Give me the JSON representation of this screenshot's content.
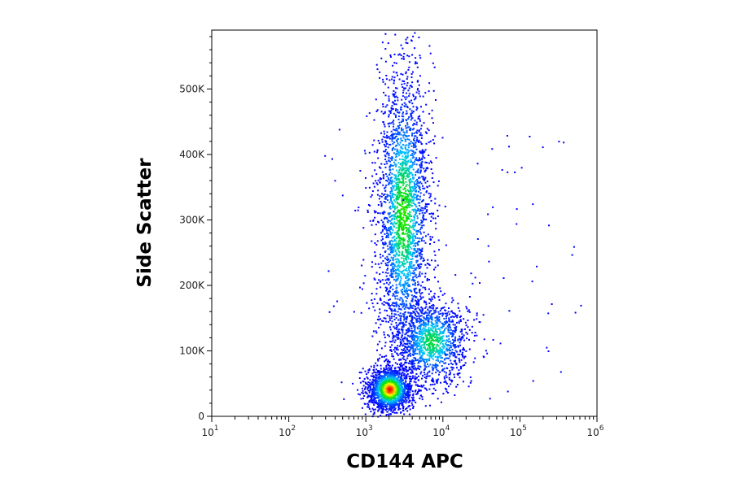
{
  "chart_data": {
    "type": "scatter",
    "style": "density pseudocolor dot plot",
    "xlabel": "CD144 APC",
    "ylabel": "Side Scatter",
    "x_scale": "log",
    "xlim": [
      10,
      1000000
    ],
    "ylim": [
      0,
      590000
    ],
    "x_ticks": [
      {
        "value": 10,
        "base": "10",
        "exp": "1"
      },
      {
        "value": 100,
        "base": "10",
        "exp": "2"
      },
      {
        "value": 1000,
        "base": "10",
        "exp": "3"
      },
      {
        "value": 10000,
        "base": "10",
        "exp": "4"
      },
      {
        "value": 100000,
        "base": "10",
        "exp": "5"
      },
      {
        "value": 1000000,
        "base": "10",
        "exp": "6"
      }
    ],
    "y_ticks": [
      {
        "value": 0,
        "label": "0"
      },
      {
        "value": 100000,
        "label": "100K"
      },
      {
        "value": 200000,
        "label": "200K"
      },
      {
        "value": 300000,
        "label": "300K"
      },
      {
        "value": 400000,
        "label": "400K"
      },
      {
        "value": 500000,
        "label": "500K"
      }
    ],
    "grid": false,
    "legend": "none",
    "color_scale": [
      "#0000ff",
      "#00c8ff",
      "#00e000",
      "#ffff00",
      "#ff0000"
    ],
    "populations": [
      {
        "x_center": 2000,
        "y_center": 42000,
        "x_spread_decades": 0.09,
        "y_spread": 11000,
        "peak_density": 1.0
      },
      {
        "x_center": 3000,
        "y_center": 310000,
        "x_spread_decades": 0.11,
        "y_spread": 75000,
        "peak_density": 0.55
      },
      {
        "x_center": 7000,
        "y_center": 115000,
        "x_spread_decades": 0.15,
        "y_spread": 22000,
        "peak_density": 0.45
      }
    ]
  }
}
